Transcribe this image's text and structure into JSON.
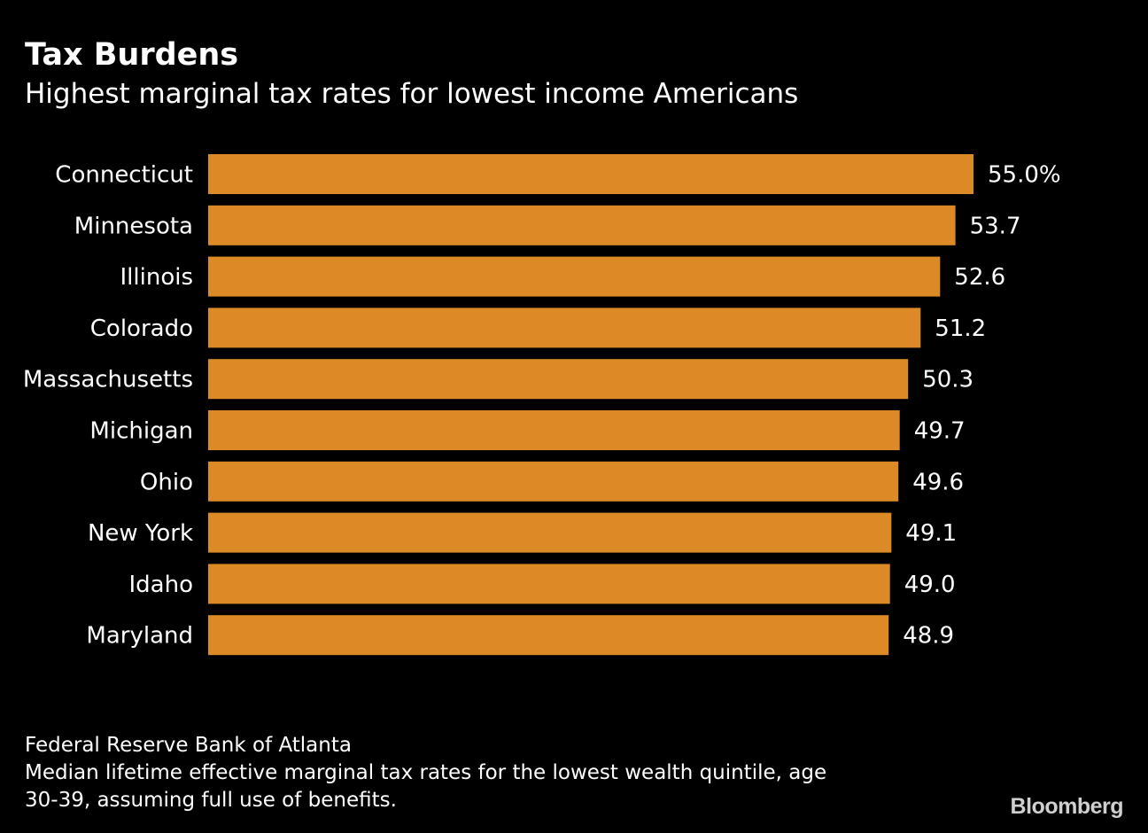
{
  "header": {
    "title": "Tax Burdens",
    "subtitle": "Highest marginal tax rates for lowest income Americans"
  },
  "footer": {
    "source": "Federal Reserve Bank of Atlanta",
    "note_line1": "Median lifetime effective marginal tax rates for the lowest wealth quintile, age",
    "note_line2": "30-39, assuming full use of benefits.",
    "brand": "Bloomberg"
  },
  "colors": {
    "bar": "#dc8a25",
    "background": "#000000",
    "text": "#ffffff"
  },
  "chart_data": {
    "type": "bar",
    "orientation": "horizontal",
    "title": "Tax Burdens",
    "subtitle": "Highest marginal tax rates for lowest income Americans",
    "xlabel": "",
    "ylabel": "",
    "grid": false,
    "categories": [
      "Connecticut",
      "Minnesota",
      "Illinois",
      "Colorado",
      "Massachusetts",
      "Michigan",
      "Ohio",
      "New York",
      "Idaho",
      "Maryland"
    ],
    "values": [
      55.0,
      53.7,
      52.6,
      51.2,
      50.3,
      49.7,
      49.6,
      49.1,
      49.0,
      48.9
    ],
    "value_labels": [
      "55.0%",
      "53.7",
      "52.6",
      "51.2",
      "50.3",
      "49.7",
      "49.6",
      "49.1",
      "49.0",
      "48.9"
    ],
    "xlim": [
      0,
      55.0
    ]
  }
}
